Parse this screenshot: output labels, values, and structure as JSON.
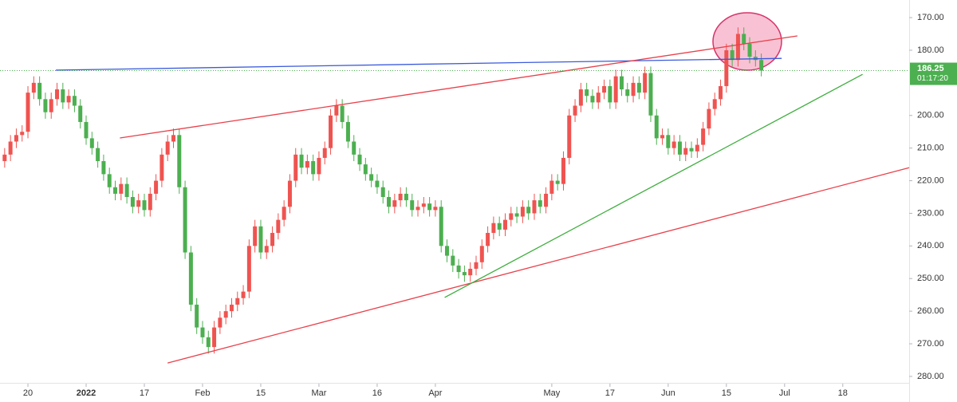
{
  "chart_data": {
    "type": "candlestick",
    "inverted": true,
    "up_color": "#4caf50",
    "down_color": "#ef5350",
    "xlim": [
      -0.8,
      155.4
    ],
    "ylim": [
      164.6,
      283.2
    ],
    "xticks": [
      {
        "value": 4,
        "label": "20"
      },
      {
        "value": 14,
        "label": "2022"
      },
      {
        "value": 24,
        "label": "17"
      },
      {
        "value": 34,
        "label": "Feb"
      },
      {
        "value": 44,
        "label": "15"
      },
      {
        "value": 54,
        "label": "Mar"
      },
      {
        "value": 64,
        "label": "16"
      },
      {
        "value": 74,
        "label": "Apr"
      },
      {
        "value": 94,
        "label": "May"
      },
      {
        "value": 104,
        "label": "17"
      },
      {
        "value": 114,
        "label": "Jun"
      },
      {
        "value": 124,
        "label": "15"
      },
      {
        "value": 134,
        "label": "Jul"
      },
      {
        "value": 144,
        "label": "18"
      }
    ],
    "yticks": [
      {
        "value": 170,
        "label": "170.00"
      },
      {
        "value": 180,
        "label": "180.00"
      },
      {
        "value": 200,
        "label": "200.00"
      },
      {
        "value": 210,
        "label": "210.00"
      },
      {
        "value": 220,
        "label": "220.00"
      },
      {
        "value": 230,
        "label": "230.00"
      },
      {
        "value": 240,
        "label": "240.00"
      },
      {
        "value": 250,
        "label": "250.00"
      },
      {
        "value": 260,
        "label": "260.00"
      },
      {
        "value": 270,
        "label": "270.00"
      },
      {
        "value": 280,
        "label": "280.00"
      }
    ],
    "open": [
      214,
      212,
      208,
      206,
      205,
      193,
      190,
      195,
      199,
      195,
      192,
      196,
      194,
      197,
      202,
      207,
      210,
      214,
      218,
      222,
      224,
      221,
      225,
      228,
      226,
      229,
      224,
      220,
      212,
      208,
      206,
      222,
      242,
      258,
      265,
      268,
      271,
      265,
      262,
      260,
      258,
      256,
      254,
      240,
      234,
      242,
      240,
      236,
      232,
      228,
      220,
      212,
      216,
      214,
      218,
      213,
      210,
      200,
      197,
      202,
      208,
      212,
      215,
      218,
      220,
      222,
      225,
      228,
      226,
      224,
      226,
      229,
      228,
      227,
      229,
      228,
      240,
      243,
      246,
      248,
      249,
      247,
      245,
      240,
      236,
      233,
      235,
      232,
      230,
      231,
      228,
      230,
      226,
      228,
      224,
      220,
      221,
      213,
      200,
      197,
      192,
      194,
      196,
      193,
      191,
      196,
      188,
      192,
      194,
      190,
      193,
      187,
      200,
      207,
      206,
      210,
      208,
      212,
      210,
      211,
      209,
      204,
      198,
      195,
      191,
      180,
      183,
      175,
      178,
      182,
      183
    ],
    "high": [
      216,
      214,
      210,
      208,
      207,
      195,
      197,
      201,
      201,
      197,
      198,
      198,
      199,
      204,
      209,
      212,
      216,
      220,
      224,
      226,
      226,
      227,
      230,
      230,
      231,
      231,
      226,
      222,
      214,
      210,
      224,
      244,
      260,
      267,
      270,
      273,
      273,
      267,
      264,
      262,
      260,
      258,
      256,
      242,
      244,
      244,
      242,
      238,
      234,
      230,
      222,
      218,
      218,
      220,
      220,
      215,
      212,
      202,
      204,
      210,
      214,
      217,
      220,
      222,
      224,
      227,
      230,
      230,
      228,
      228,
      231,
      231,
      230,
      231,
      231,
      242,
      245,
      248,
      250,
      251,
      251,
      249,
      247,
      242,
      238,
      237,
      237,
      234,
      233,
      233,
      232,
      232,
      230,
      230,
      226,
      223,
      223,
      215,
      202,
      199,
      196,
      198,
      198,
      195,
      198,
      198,
      194,
      196,
      196,
      195,
      195,
      202,
      209,
      209,
      212,
      212,
      214,
      214,
      213,
      213,
      211,
      206,
      200,
      197,
      193,
      185,
      185,
      180,
      184,
      185,
      188
    ],
    "low": [
      210,
      206,
      204,
      203,
      191,
      188,
      188,
      193,
      193,
      190,
      190,
      192,
      192,
      195,
      200,
      205,
      208,
      212,
      216,
      220,
      219,
      219,
      223,
      224,
      224,
      222,
      218,
      210,
      206,
      204,
      204,
      220,
      240,
      256,
      263,
      266,
      263,
      260,
      258,
      256,
      254,
      252,
      238,
      232,
      232,
      238,
      234,
      230,
      226,
      218,
      210,
      210,
      212,
      212,
      211,
      208,
      198,
      195,
      195,
      200,
      206,
      210,
      213,
      216,
      218,
      220,
      223,
      224,
      222,
      222,
      224,
      226,
      225,
      225,
      226,
      226,
      238,
      241,
      244,
      246,
      245,
      243,
      238,
      234,
      231,
      231,
      230,
      228,
      228,
      226,
      226,
      224,
      224,
      222,
      218,
      218,
      211,
      198,
      195,
      190,
      190,
      192,
      191,
      189,
      189,
      186,
      186,
      190,
      188,
      188,
      185,
      185,
      198,
      204,
      204,
      206,
      206,
      208,
      208,
      207,
      202,
      196,
      193,
      189,
      178,
      178,
      173,
      173,
      176,
      180,
      181
    ],
    "close": [
      212,
      208,
      206,
      205,
      193,
      190,
      195,
      199,
      195,
      192,
      196,
      194,
      197,
      202,
      207,
      210,
      214,
      218,
      222,
      224,
      221,
      225,
      228,
      226,
      229,
      224,
      220,
      212,
      208,
      206,
      222,
      242,
      258,
      265,
      268,
      271,
      265,
      262,
      260,
      258,
      256,
      254,
      240,
      234,
      242,
      240,
      236,
      232,
      228,
      220,
      212,
      216,
      214,
      218,
      213,
      210,
      200,
      197,
      202,
      208,
      212,
      215,
      218,
      220,
      222,
      225,
      228,
      226,
      224,
      226,
      229,
      228,
      227,
      229,
      228,
      240,
      243,
      246,
      248,
      249,
      247,
      245,
      240,
      236,
      233,
      235,
      232,
      230,
      231,
      228,
      230,
      226,
      228,
      224,
      220,
      221,
      213,
      200,
      197,
      192,
      194,
      196,
      193,
      191,
      196,
      188,
      192,
      194,
      190,
      193,
      187,
      200,
      207,
      206,
      210,
      208,
      212,
      210,
      211,
      209,
      204,
      198,
      195,
      191,
      180,
      183,
      175,
      178,
      182,
      183,
      186.25
    ],
    "countdown": "01:17:20",
    "trendlines": [
      {
        "color": "#3b5bdb",
        "x": [
          8.8,
          133.5
        ],
        "y": [
          186.1,
          182.5
        ]
      },
      {
        "color": "#e8414b",
        "x": [
          19.8,
          136.2
        ],
        "y": [
          206.9,
          175.6
        ]
      },
      {
        "color": "#e8414b",
        "x": [
          28,
          155.4
        ],
        "y": [
          275.9,
          216
        ]
      },
      {
        "color": "#3fae3f",
        "x": [
          75.6,
          147.4
        ],
        "y": [
          255.8,
          187.4
        ]
      }
    ]
  }
}
